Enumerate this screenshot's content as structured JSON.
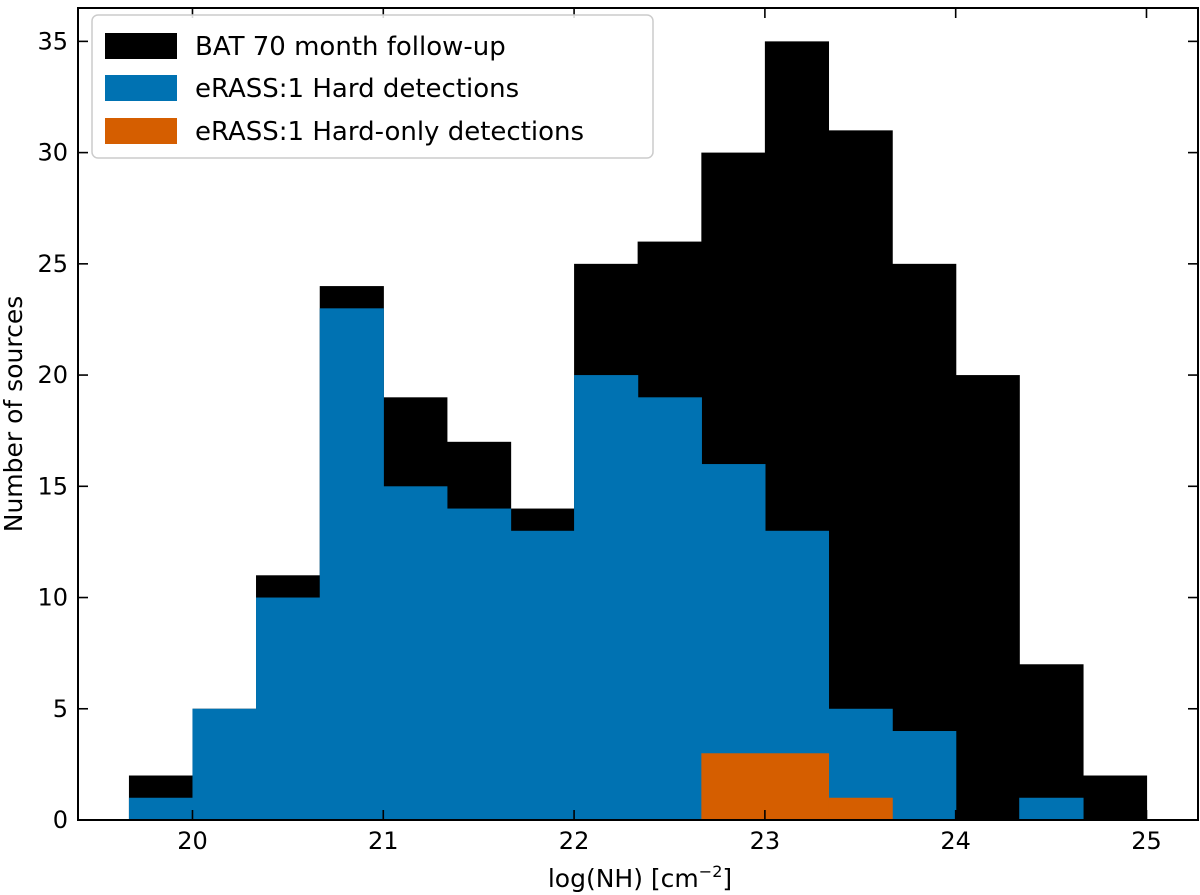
{
  "chart_data": {
    "type": "bar",
    "title": "",
    "xlabel": "log(NH) [cm",
    "xlabel_sup": "−2",
    "xlabel_close": "]",
    "ylabel": "Number of sources",
    "xlim": [
      19.4,
      25.27
    ],
    "ylim": [
      0,
      36.5
    ],
    "xticks": [
      20,
      21,
      22,
      23,
      24,
      25
    ],
    "yticks": [
      0,
      5,
      10,
      15,
      20,
      25,
      30,
      35
    ],
    "bin_edges": [
      19.667,
      20.0,
      20.333,
      20.667,
      21.0,
      21.333,
      21.667,
      22.0,
      22.333,
      22.667,
      23.0,
      23.333,
      23.667,
      24.0,
      24.333,
      24.667,
      25.0
    ],
    "series": [
      {
        "name": "BAT 70 month follow-up",
        "color": "#000000",
        "values": [
          2,
          5,
          11,
          24,
          19,
          17,
          14,
          25,
          26,
          30,
          35,
          31,
          25,
          20,
          7,
          2
        ]
      },
      {
        "name": "eRASS:1 Hard detections",
        "color": "#0072b2",
        "values": [
          1,
          5,
          10,
          23,
          15,
          14,
          13,
          20,
          19,
          16,
          13,
          5,
          4,
          0,
          1,
          0
        ]
      },
      {
        "name": "eRASS:1 Hard-only detections",
        "color": "#d55e00",
        "values": [
          0,
          0,
          0,
          0,
          0,
          0,
          0,
          0,
          0,
          3,
          3,
          1,
          0,
          0,
          0,
          0
        ]
      }
    ],
    "legend_position": "top-left"
  }
}
